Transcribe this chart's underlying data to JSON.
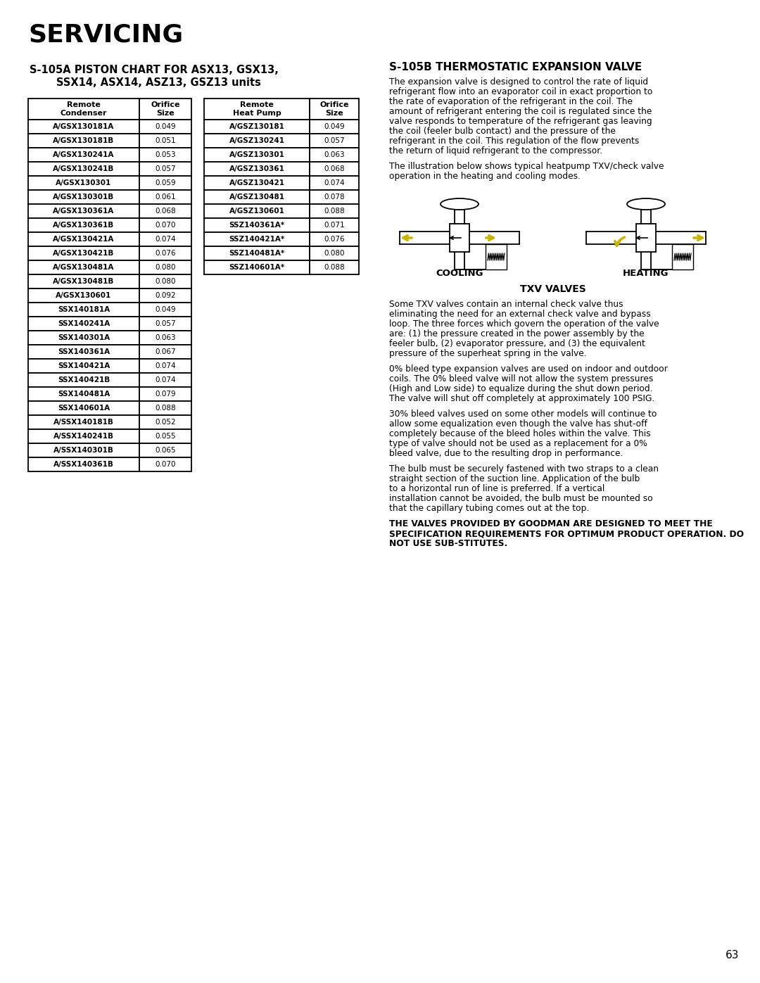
{
  "title_main": "SERVICING",
  "subtitle_line1": "S-105A PISTON CHART FOR ASX13, GSX13,",
  "subtitle_line2": "SSX14, ASX14, ASZ13, GSZ13 units",
  "left_table_header": [
    "Remote\nCondenser",
    "Orifice\nSize"
  ],
  "right_table_header": [
    "Remote\nHeat Pump",
    "Orifice\nSize"
  ],
  "left_table_data": [
    [
      "A/GSX130181A",
      "0.049"
    ],
    [
      "A/GSX130181B",
      "0.051"
    ],
    [
      "A/GSX130241A",
      "0.053"
    ],
    [
      "A/GSX130241B",
      "0.057"
    ],
    [
      "A/GSX130301",
      "0.059"
    ],
    [
      "A/GSX130301B",
      "0.061"
    ],
    [
      "A/GSX130361A",
      "0.068"
    ],
    [
      "A/GSX130361B",
      "0.070"
    ],
    [
      "A/GSX130421A",
      "0.074"
    ],
    [
      "A/GSX130421B",
      "0.076"
    ],
    [
      "A/GSX130481A",
      "0.080"
    ],
    [
      "A/GSX130481B",
      "0.080"
    ],
    [
      "A/GSX130601",
      "0.092"
    ],
    [
      "SSX140181A",
      "0.049"
    ],
    [
      "SSX140241A",
      "0.057"
    ],
    [
      "SSX140301A",
      "0.063"
    ],
    [
      "SSX140361A",
      "0.067"
    ],
    [
      "SSX140421A",
      "0.074"
    ],
    [
      "SSX140421B",
      "0.074"
    ],
    [
      "SSX140481A",
      "0.079"
    ],
    [
      "SSX140601A",
      "0.088"
    ],
    [
      "A/SSX140181B",
      "0.052"
    ],
    [
      "A/SSX140241B",
      "0.055"
    ],
    [
      "A/SSX140301B",
      "0.065"
    ],
    [
      "A/SSX140361B",
      "0.070"
    ]
  ],
  "right_table_data": [
    [
      "A/GSZ130181",
      "0.049"
    ],
    [
      "A/GSZ130241",
      "0.057"
    ],
    [
      "A/GSZ130301",
      "0.063"
    ],
    [
      "A/GSZ130361",
      "0.068"
    ],
    [
      "A/GSZ130421",
      "0.074"
    ],
    [
      "A/GSZ130481",
      "0.078"
    ],
    [
      "A/GSZ130601",
      "0.088"
    ],
    [
      "SSZ140361A*",
      "0.071"
    ],
    [
      "SSZ140421A*",
      "0.076"
    ],
    [
      "SSZ140481A*",
      "0.080"
    ],
    [
      "SSZ140601A*",
      "0.088"
    ]
  ],
  "section2_title": "S-105B THERMOSTATIC EXPANSION VALVE",
  "section2_para1": "The expansion valve is designed to control the rate of liquid refrigerant flow into an evaporator coil in exact proportion to the rate of evaporation of the refrigerant in the coil.  The amount of refrigerant entering the coil is regulated since the valve responds to temperature of the refrigerant gas leaving the coil (feeler bulb contact) and the pressure of the refrigerant in the coil.  This regulation of the flow prevents the return of liquid refrigerant to the compressor.",
  "section2_para2": "The illustration below shows typical heatpump TXV/check valve operation in the heating and cooling modes.",
  "cooling_label": "COOLING",
  "heating_label": "HEATING",
  "txv_title": "TXV VALVES",
  "section2_para3": "Some TXV valves contain an internal check valve thus eliminating the need for an external check valve and bypass loop.  The three forces which govern the operation of the valve are:  (1) the pressure created in the power assembly by the feeler bulb, (2) evaporator pressure, and (3) the equivalent pressure of the superheat spring in the valve.",
  "section2_para4": "0% bleed type expansion valves are used on indoor and outdoor coils.  The 0% bleed valve will not allow the system pressures (High and Low side) to equalize during the shut down period.  The valve will shut off completely at approximately 100 PSIG.",
  "section2_para5": "30% bleed valves used on some other models will continue to allow some equalization even though the valve has shut-off completely because of the bleed holes within the valve.  This type of valve should not be used as a replacement for a 0% bleed valve, due to the resulting drop in performance.",
  "section2_para6": "The bulb must be securely fastened with two straps to a clean straight section of the suction line.  Application of the bulb to a horizontal run of line is preferred.  If a vertical installation cannot be avoided, the bulb must be mounted so that the capillary tubing comes out at the top.",
  "section2_bold": "THE VALVES PROVIDED BY GOODMAN ARE DESIGNED TO MEET THE SPECIFICATION REQUIREMENTS FOR OPTIMUM PRODUCT OPERATION.  DO NOT USE SUB-STITUTES.",
  "page_number": "63"
}
